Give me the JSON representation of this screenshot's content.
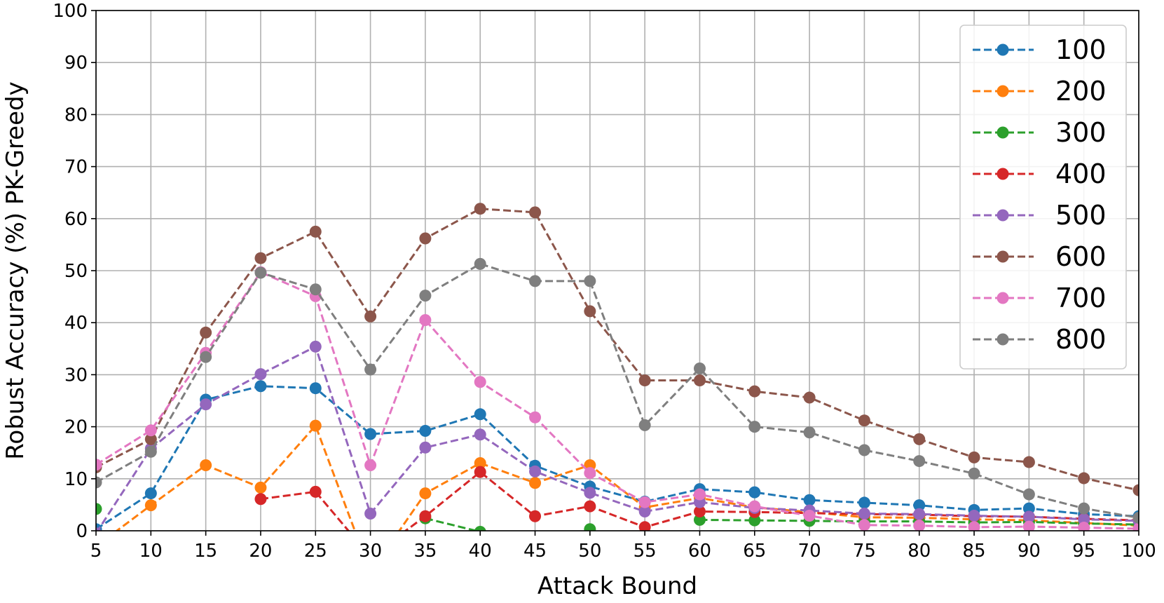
{
  "chart_data": {
    "type": "line",
    "xlabel": "Attack Bound",
    "ylabel": "Robust Accuracy (%) PK-Greedy",
    "xlim": [
      5,
      100
    ],
    "ylim": [
      0,
      100
    ],
    "x_ticks": [
      5,
      10,
      15,
      20,
      25,
      30,
      35,
      40,
      45,
      50,
      55,
      60,
      65,
      70,
      75,
      80,
      85,
      90,
      95,
      100
    ],
    "y_ticks": [
      0,
      10,
      20,
      30,
      40,
      50,
      60,
      70,
      80,
      90,
      100
    ],
    "grid": true,
    "legend_position": "top-right",
    "line_style": "dashed",
    "marker": "circle",
    "x": [
      5,
      10,
      15,
      20,
      25,
      30,
      35,
      40,
      45,
      50,
      55,
      60,
      65,
      70,
      75,
      80,
      85,
      90,
      95,
      100
    ],
    "series": [
      {
        "name": "100",
        "color": "#1f77b4",
        "values": [
          0.3,
          7.2,
          25.2,
          27.8,
          27.4,
          18.6,
          19.2,
          22.4,
          12.5,
          8.5,
          5.6,
          8,
          7.4,
          5.9,
          5.4,
          4.9,
          4,
          4.3,
          3.2,
          2.8
        ]
      },
      {
        "name": "200",
        "color": "#ff7f0e",
        "values": [
          -3,
          4.9,
          12.6,
          8.3,
          20.2,
          -8,
          7.2,
          13,
          9.2,
          12.6,
          4.5,
          6.3,
          4.5,
          3.6,
          2.6,
          2.5,
          2.2,
          2,
          1.5,
          1
        ]
      },
      {
        "name": "300",
        "color": "#2ca02c",
        "values": [
          4.2,
          null,
          null,
          null,
          null,
          null,
          2.4,
          -0.2,
          null,
          0.3,
          null,
          2.1,
          2,
          1.9,
          1.8,
          1.8,
          1.6,
          1.7,
          1.4,
          1.2
        ]
      },
      {
        "name": "400",
        "color": "#d62728",
        "values": [
          null,
          null,
          null,
          6.1,
          7.5,
          -5,
          2.8,
          11.3,
          2.8,
          4.7,
          0.7,
          3.7,
          3.6,
          3.4,
          3.2,
          3.1,
          2.8,
          2.7,
          2.3,
          2
        ]
      },
      {
        "name": "500",
        "color": "#9467bd",
        "values": [
          -0.5,
          15.8,
          24.3,
          30.1,
          35.4,
          3.3,
          16,
          18.5,
          11.4,
          7.3,
          3.7,
          5.5,
          4.4,
          3.9,
          3.3,
          3.2,
          2.9,
          2.7,
          2.2,
          1.9
        ]
      },
      {
        "name": "600",
        "color": "#8c564b",
        "values": [
          12.2,
          17.6,
          38.1,
          52.4,
          57.5,
          41.2,
          56.2,
          61.9,
          61.2,
          42.2,
          28.9,
          28.9,
          26.8,
          25.6,
          21.2,
          17.6,
          14.1,
          13.2,
          10.1,
          7.8
        ]
      },
      {
        "name": "700",
        "color": "#e377c2",
        "values": [
          12.7,
          19.3,
          34.2,
          49.7,
          45.1,
          12.6,
          40.5,
          28.6,
          21.8,
          11.1,
          5.5,
          7,
          4.7,
          2.9,
          1.1,
          1,
          0.7,
          0.8,
          0.6,
          0.4
        ]
      },
      {
        "name": "800",
        "color": "#7f7f7f",
        "values": [
          9.3,
          15.2,
          33.4,
          49.6,
          46.4,
          31,
          45.2,
          51.3,
          48,
          48,
          20.3,
          31.2,
          20,
          18.9,
          15.5,
          13.4,
          11,
          7,
          4.3,
          2.5
        ]
      }
    ]
  }
}
